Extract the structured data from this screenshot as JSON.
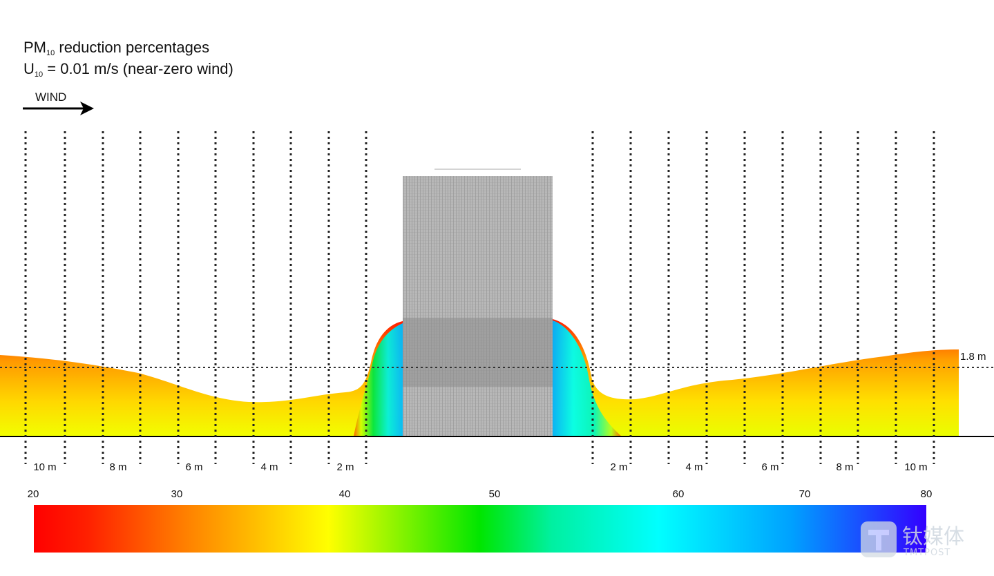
{
  "title": {
    "line1_prefix": "PM",
    "line1_sub": "10",
    "line1_suffix": " reduction percentages",
    "line2_prefix": "U",
    "line2_sub": "10",
    "line2_suffix": " = 0.01 m/s (near-zero wind)"
  },
  "wind_label": "WIND",
  "height_marker": "1.8 m",
  "distance_labels_left": [
    "10 m",
    "8 m",
    "6 m",
    "4 m",
    "2 m"
  ],
  "distance_labels_right": [
    "2 m",
    "4 m",
    "6 m",
    "8 m",
    "10 m"
  ],
  "colorbar": {
    "ticks": [
      "20",
      "30",
      "40",
      "50",
      "60",
      "70",
      "80"
    ],
    "colors": [
      "#ff0000",
      "#ff7a00",
      "#ffff00",
      "#00e600",
      "#00ffff",
      "#00a0ff",
      "#3300ff"
    ]
  },
  "watermark": {
    "cn": "钛媒体",
    "en": "TMTPOST",
    "icon": "tmtpost-logo-icon"
  }
}
